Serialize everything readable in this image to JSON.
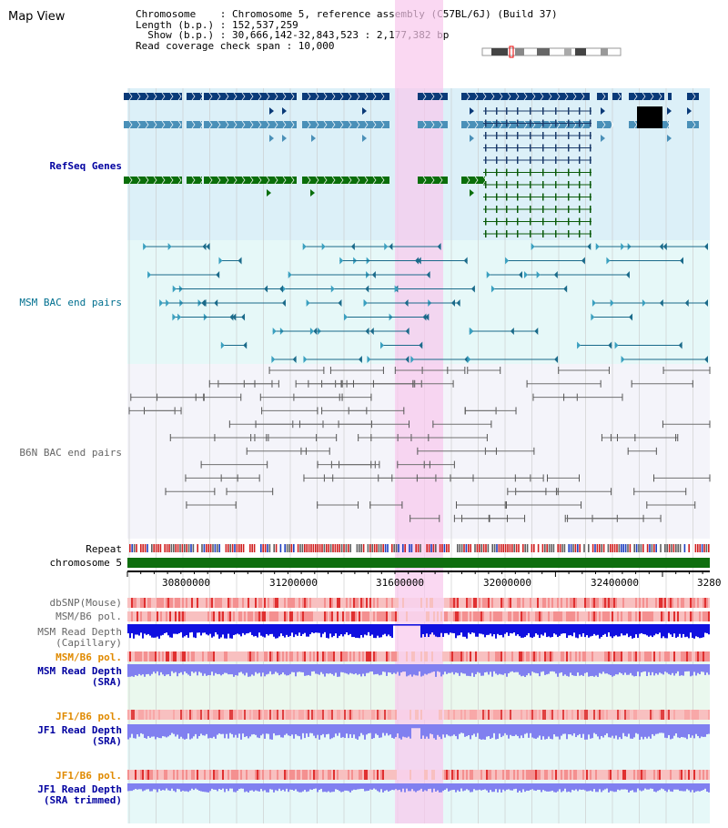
{
  "page": {
    "title": "Map View"
  },
  "header": {
    "chromosome_line": "Chromosome    : Chromosome 5, reference assembly (C57BL/6J) (Build 37)",
    "length_line": "Length (b.p.) : 152,537,259",
    "show_line": "  Show (b.p.) : 30,666,142-32,843,523 : 2,177,382 bp",
    "span_line": "Read coverage check span : 10,000"
  },
  "tracks": {
    "refseq": "RefSeq Genes",
    "msm_bac": "MSM BAC end pairs",
    "b6n_bac": "B6N BAC end pairs",
    "repeat": "Repeat",
    "chromosome": "chromosome 5",
    "dbsnp": "dbSNP(Mouse)",
    "msm_b6_pol": "MSM/B6 pol.",
    "msm_read_depth_cap_1": "MSM Read Depth",
    "msm_read_depth_cap_2": "(Capillary)",
    "msm_b6_pol_2": "MSM/B6 pol.",
    "msm_read_depth_sra_1": "MSM Read Depth",
    "msm_read_depth_sra_2": "(SRA)",
    "jf1_b6_pol": "JF1/B6 pol.",
    "jf1_read_depth_1": "JF1 Read Depth",
    "jf1_read_depth_2": "(SRA)",
    "jf1_b6_pol_2": "JF1/B6 pol.",
    "jf1_read_depth_trim_1": "JF1 Read Depth",
    "jf1_read_depth_trim_2": "(SRA trimmed)"
  },
  "axis": {
    "ticks": [
      "30800000",
      "31200000",
      "31600000",
      "32000000",
      "32400000",
      "3280"
    ]
  },
  "colors": {
    "refseq_bg": "#dcf0f8",
    "msm_bg": "#e6f8f8",
    "b6n_bg": "#f4f4fa",
    "highlight": "#f8d8f0",
    "gene_dark": "#0a3a78",
    "gene_mid": "#4a90b8",
    "gene_green": "#0a6e0a",
    "chromosome_bar": "#0f6e0f",
    "depth_blue": "#1010e0",
    "depth_light": "#8080f0"
  }
}
